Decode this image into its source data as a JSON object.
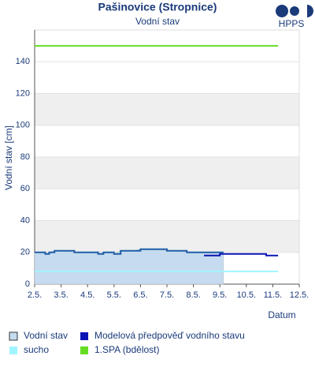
{
  "logo": "HPPS",
  "chart_data": {
    "type": "line",
    "title": "Pašinovice (Stropnice)",
    "subtitle": "Vodní stav",
    "y_label": "Vodní stav [cm]",
    "x_label": "Datum",
    "xlim": [
      0,
      10
    ],
    "ylim": [
      0,
      160
    ],
    "xticks": [
      {
        "value": 0,
        "label": "2.5."
      },
      {
        "value": 1,
        "label": "3.5."
      },
      {
        "value": 2,
        "label": "4.5."
      },
      {
        "value": 3,
        "label": "5.5."
      },
      {
        "value": 4,
        "label": "6.5."
      },
      {
        "value": 5,
        "label": "7.5."
      },
      {
        "value": 6,
        "label": "8.5."
      },
      {
        "value": 7,
        "label": "9.5."
      },
      {
        "value": 8,
        "label": "10.5."
      },
      {
        "value": 9,
        "label": "11.5."
      },
      {
        "value": 10,
        "label": "12.5."
      }
    ],
    "yticks": [
      0,
      20,
      40,
      60,
      80,
      100,
      120,
      140
    ],
    "series": [
      {
        "name": "Vodní stav",
        "color": "#1f5fa8",
        "fill_color": "#c6dbef",
        "x": [
          0,
          0.25,
          0.4,
          0.55,
          0.75,
          1.0,
          1.25,
          1.5,
          1.75,
          2.0,
          2.25,
          2.4,
          2.6,
          2.75,
          3.0,
          3.25,
          3.5,
          3.75,
          4.0,
          4.25,
          4.5,
          4.75,
          5.0,
          5.25,
          5.5,
          5.75,
          6.0,
          6.25,
          6.5,
          6.75,
          7.0,
          7.14
        ],
        "values": [
          20,
          20,
          19,
          20,
          21,
          21,
          21,
          20,
          20,
          20,
          20,
          19,
          20,
          20,
          19,
          21,
          21,
          21,
          22,
          22,
          22,
          22,
          21,
          21,
          21,
          20,
          20,
          20,
          20,
          20,
          20,
          20
        ]
      },
      {
        "name": "Modelová předpověď vodního stavu",
        "color": "#0a14b4",
        "x": [
          6.4,
          7.0,
          7.5,
          8.0,
          8.5,
          8.7,
          8.75,
          9.2
        ],
        "values": [
          18,
          19,
          19,
          19,
          19,
          19,
          18,
          18
        ]
      },
      {
        "name": "sucho",
        "color": "#a0f5ff",
        "x": [
          0,
          9.2
        ],
        "values": [
          8,
          8
        ]
      },
      {
        "name": "1.SPA (bdělost)",
        "color": "#66dd22",
        "x": [
          0,
          9.2
        ],
        "values": [
          150,
          150
        ]
      }
    ]
  }
}
